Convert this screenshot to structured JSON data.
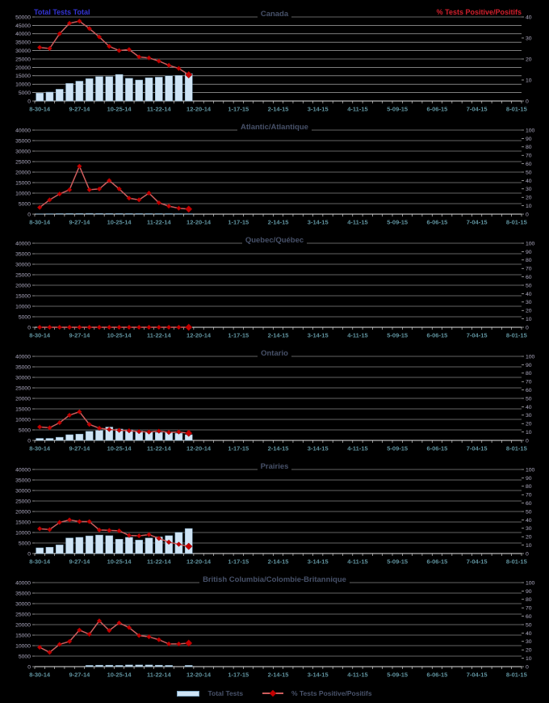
{
  "header": {
    "left_axis_title": "Total Tests Total",
    "right_axis_title": "% Tests Positive/Positifs"
  },
  "legend": {
    "total_tests": "Total Tests",
    "pct_positive": "% Tests Positive/Positifs"
  },
  "colors": {
    "background": "#000000",
    "grid": "#c9c9c9",
    "axis": "#e6e6e6",
    "bar_fill": "#cfe4f5",
    "bar_stroke": "#7fa8c4",
    "line": "#cd5c5c",
    "marker": "#c40000",
    "marker_edge": "#8b0000",
    "y_labels": "#b2aec6",
    "x_labels": "#5f929e",
    "title": "#475169",
    "header_blue": "#3434d6",
    "header_red": "#d41f2c"
  },
  "chart_data": {
    "type": "combo bar+line, dual axis, 6 stacked weekly surveillance panels",
    "x_axis": {
      "tick_labels": [
        "8-30-14",
        "9-27-14",
        "10-25-14",
        "11-22-14",
        "12-20-14",
        "1-17-15",
        "2-14-15",
        "3-14-15",
        "4-11-15",
        "5-09-15",
        "6-06-15",
        "7-04-15",
        "8-01-15"
      ],
      "weeks_total": 49,
      "label_every_n_weeks": 4
    },
    "data_week_dates": [
      "8-30-14",
      "9-06-14",
      "9-13-14",
      "9-20-14",
      "9-27-14",
      "10-04-14",
      "10-11-14",
      "10-18-14",
      "10-25-14",
      "11-01-14",
      "11-08-14",
      "11-15-14",
      "11-22-14",
      "11-29-14",
      "12-06-14",
      "12-13-14"
    ],
    "legend_position": "bottom-center",
    "grid": "horizontal gridlines on, black plot background",
    "panels": [
      {
        "title": "Canada",
        "left_axis": {
          "min": 0,
          "max": 50000,
          "step": 5000
        },
        "right_axis": {
          "min": 0,
          "max": 40,
          "step": 10
        },
        "series": {
          "total_tests": [
            4700,
            5300,
            7000,
            10500,
            11800,
            13300,
            14500,
            14500,
            15800,
            13500,
            12500,
            13800,
            14200,
            15000,
            15200,
            16300
          ],
          "pct_positive": [
            25.5,
            25,
            32,
            37,
            38,
            34.5,
            30.5,
            26,
            24,
            24.5,
            21,
            20.5,
            19,
            17,
            15.5,
            12.5
          ]
        }
      },
      {
        "title": "Atlantic/Atlantique",
        "left_axis": {
          "min": 0,
          "max": 40000,
          "step": 5000
        },
        "right_axis": {
          "min": 0,
          "max": 100,
          "step": 10
        },
        "series": {
          "total_tests": [
            150,
            200,
            250,
            300,
            320,
            350,
            330,
            310,
            290,
            270,
            260,
            250,
            240,
            230,
            210,
            200
          ],
          "pct_positive": [
            8,
            17,
            24,
            29,
            57,
            29,
            30,
            40,
            30,
            19,
            17,
            25,
            13.5,
            9.5,
            7,
            6
          ]
        }
      },
      {
        "title": "Quebec/Québec",
        "left_axis": {
          "min": 0,
          "max": 40000,
          "step": 5000
        },
        "right_axis": {
          "min": 0,
          "max": 100,
          "step": 10
        },
        "series": {
          "total_tests": [
            0,
            0,
            0,
            0,
            0,
            0,
            0,
            0,
            0,
            0,
            0,
            0,
            0,
            0,
            0,
            0
          ],
          "pct_positive": [
            0,
            0,
            0,
            0,
            0,
            0,
            0,
            0,
            0,
            0,
            0,
            0,
            0,
            0,
            0,
            0
          ]
        }
      },
      {
        "title": "Ontario",
        "left_axis": {
          "min": 0,
          "max": 40000,
          "step": 5000
        },
        "right_axis": {
          "min": 0,
          "max": 100,
          "step": 10
        },
        "series": {
          "total_tests": [
            950,
            950,
            1500,
            2700,
            3000,
            4300,
            4700,
            6350,
            5400,
            5000,
            4450,
            4050,
            3800,
            4050,
            3400,
            2700
          ],
          "pct_positive": [
            16,
            15,
            21,
            30,
            34,
            19,
            14.5,
            13,
            12,
            11.5,
            10.5,
            10,
            11,
            9.5,
            10,
            8.5
          ]
        }
      },
      {
        "title": "Prairies",
        "left_axis": {
          "min": 0,
          "max": 40000,
          "step": 5000
        },
        "right_axis": {
          "min": 0,
          "max": 100,
          "step": 10
        },
        "series": {
          "total_tests": [
            2700,
            3000,
            4100,
            7400,
            7700,
            8400,
            8800,
            8500,
            6800,
            7700,
            6400,
            7400,
            7900,
            8500,
            10100,
            11900
          ],
          "pct_positive": [
            29.5,
            28.5,
            37,
            40,
            38,
            38,
            28,
            27.5,
            27,
            21.5,
            21,
            22.5,
            18,
            13.5,
            11,
            8.5
          ]
        }
      },
      {
        "title": "British Columbia/Colombie-Britannique",
        "left_axis": {
          "min": 0,
          "max": 40000,
          "step": 5000
        },
        "right_axis": {
          "min": 0,
          "max": 100,
          "step": 10
        },
        "series": {
          "total_tests": [
            0,
            0,
            0,
            0,
            0,
            600,
            700,
            700,
            600,
            800,
            800,
            800,
            700,
            600,
            0,
            600
          ],
          "pct_positive": [
            23,
            17,
            26.5,
            30,
            43.5,
            38.5,
            54.5,
            43,
            52,
            46.5,
            37,
            35.5,
            32,
            27,
            27,
            28
          ]
        }
      }
    ]
  }
}
